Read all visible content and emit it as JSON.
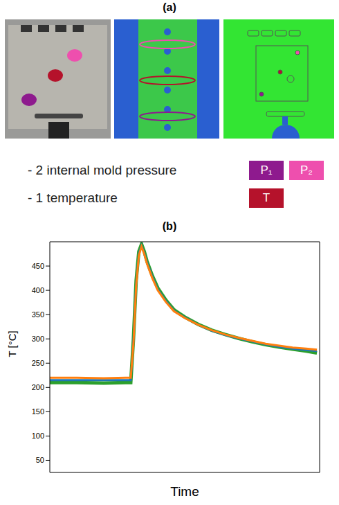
{
  "figure": {
    "panel_a": {
      "label": "(a)",
      "legend_items": [
        {
          "text": "- 2 internal mold pressure",
          "symbols": [
            {
              "text": "P₁",
              "color": "#8e1a8e"
            },
            {
              "text": "P₂",
              "color": "#ee4fae"
            }
          ]
        },
        {
          "text": "- 1 temperature",
          "symbols": [
            {
              "text": "T",
              "color": "#b5122b"
            }
          ]
        }
      ]
    }
  },
  "chart_data": {
    "type": "line",
    "title": "(b)",
    "x_label": "Time",
    "y_label": "T [°C]",
    "x": [
      0,
      10,
      20,
      28,
      30,
      31,
      32,
      33,
      34,
      35,
      36,
      38,
      40,
      43,
      46,
      50,
      55,
      60,
      65,
      70,
      75,
      80,
      85,
      90,
      95,
      99
    ],
    "xlim": [
      0,
      100
    ],
    "ylim": [
      25,
      500
    ],
    "yticks": [
      50,
      100,
      150,
      200,
      250,
      300,
      350,
      400,
      450
    ],
    "tick_labels": "y",
    "grid": false,
    "series": [
      {
        "color": "#2ca02c",
        "values": [
          210,
          210,
          209,
          210,
          210,
          300,
          420,
          480,
          495,
          480,
          460,
          430,
          405,
          380,
          360,
          345,
          330,
          318,
          309,
          301,
          294,
          288,
          283,
          279,
          275,
          271
        ]
      },
      {
        "color": "#1f77b4",
        "values": [
          215,
          215,
          215,
          215,
          215,
          295,
          415,
          476,
          492,
          477,
          458,
          428,
          402,
          378,
          358,
          344,
          329,
          317,
          308,
          301,
          295,
          289,
          284,
          280,
          277,
          275
        ]
      },
      {
        "color": "#ff7f0e",
        "values": [
          220,
          220,
          219,
          220,
          220,
          290,
          410,
          472,
          490,
          475,
          455,
          425,
          400,
          376,
          357,
          343,
          329,
          318,
          309,
          302,
          296,
          290,
          286,
          282,
          280,
          278
        ]
      }
    ]
  }
}
